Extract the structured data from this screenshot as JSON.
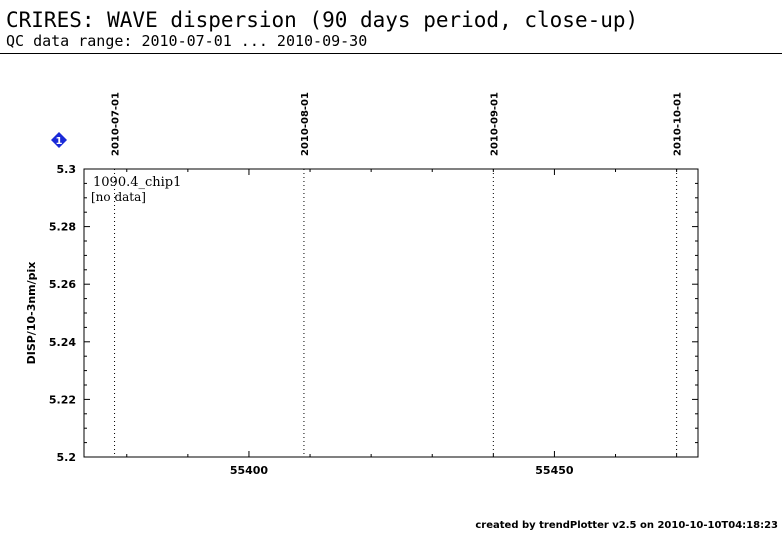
{
  "header": {
    "title": "CRIRES: WAVE dispersion (90 days period, close-up)",
    "subtitle": "QC data range: 2010-07-01 ... 2010-09-30"
  },
  "badge": {
    "label": "1",
    "color": "#1a2ad8"
  },
  "footer": {
    "text": "created by trendPlotter v2.5 on 2010-10-10T04:18:23"
  },
  "chart_data": {
    "type": "scatter",
    "title": "",
    "xlabel": "",
    "ylabel": "DISP/10-3nm/pix",
    "xlim": [
      55373,
      55473.5
    ],
    "ylim": [
      5.2,
      5.3
    ],
    "x_ticks": [
      55400,
      55450
    ],
    "y_ticks": [
      5.2,
      5.22,
      5.24,
      5.26,
      5.28,
      5.3
    ],
    "date_markers": [
      {
        "label": "2010-07-01",
        "mjd": 55378
      },
      {
        "label": "2010-08-01",
        "mjd": 55409
      },
      {
        "label": "2010-09-01",
        "mjd": 55440
      },
      {
        "label": "2010-10-01",
        "mjd": 55470
      }
    ],
    "series": [
      {
        "name": "1090.4_chip1",
        "x": [],
        "y": []
      }
    ],
    "annotation": "[no data]",
    "grid": false
  }
}
